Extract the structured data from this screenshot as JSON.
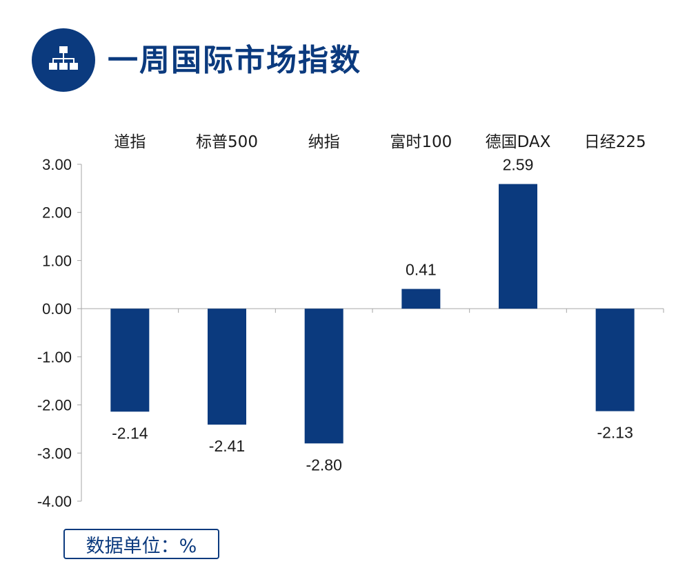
{
  "header": {
    "title": "一周国际市场指数",
    "icon": "hierarchy-icon",
    "accent_color": "#0b3a7e"
  },
  "unit_note": "数据单位：%",
  "chart_data": {
    "type": "bar",
    "categories": [
      "道指",
      "标普500",
      "纳指",
      "富时100",
      "德国DAX",
      "日经225"
    ],
    "values": [
      -2.14,
      -2.41,
      -2.8,
      0.41,
      2.59,
      -2.13
    ],
    "value_labels": [
      "-2.14",
      "-2.41",
      "-2.80",
      "0.41",
      "2.59",
      "-2.13"
    ],
    "ylim": [
      -4,
      3
    ],
    "yticks": [
      3,
      2,
      1,
      0,
      -1,
      -2,
      -3,
      -4
    ],
    "ytick_labels": [
      "3.00",
      "2.00",
      "1.00",
      "0.00",
      "-1.00",
      "-2.00",
      "-3.00",
      "-4.00"
    ],
    "category_axis_position": "top",
    "bar_color": "#0b3a7e",
    "grid": false,
    "legend": false
  }
}
